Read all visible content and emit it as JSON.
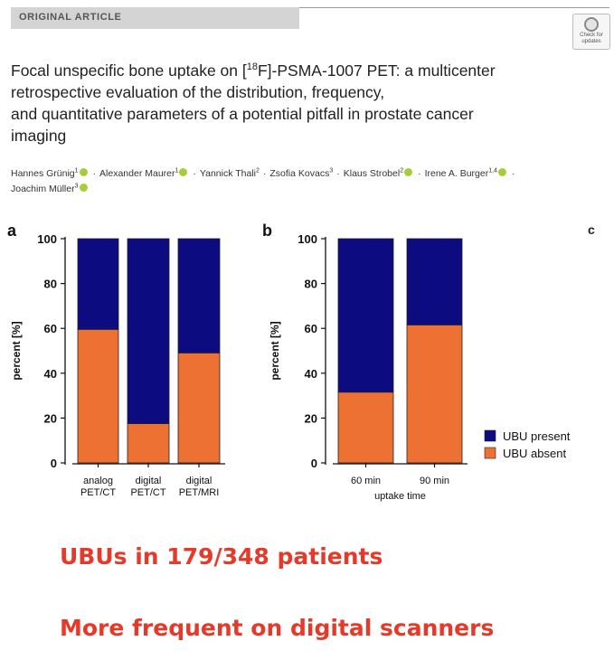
{
  "article": {
    "banner": "ORIGINAL ARTICLE",
    "check_badge": "Check for updates",
    "title_pre": "Focal unspecific bone uptake on [",
    "title_sup": "18",
    "title_post": "F]-PSMA-1007 PET: a multicenter",
    "title_line2": "retrospective evaluation of the distribution, frequency,",
    "title_line3": "and quantitative parameters of a potential pitfall in prostate cancer",
    "title_line4": "imaging",
    "authors": [
      {
        "name": "Hannes Grünig",
        "aff": "1",
        "orcid": true
      },
      {
        "name": "Alexander Maurer",
        "aff": "1",
        "orcid": true
      },
      {
        "name": "Yannick Thali",
        "aff": "2",
        "orcid": false
      },
      {
        "name": "Zsofia Kovacs",
        "aff": "3",
        "orcid": false
      },
      {
        "name": "Klaus Strobel",
        "aff": "2",
        "orcid": true
      },
      {
        "name": "Irene A. Burger",
        "aff": "1,4",
        "orcid": true
      },
      {
        "name": "Joachim Müller",
        "aff": "3",
        "orcid": true
      }
    ],
    "separator": "·",
    "third_panel_letter": "c"
  },
  "colors": {
    "present": "#0c0c80",
    "absent": "#ed7132",
    "highlight": "#e53a2a"
  },
  "chart_data": [
    {
      "panel": "a",
      "type": "bar",
      "stacked": true,
      "categories": [
        [
          "analog",
          "PET/CT"
        ],
        [
          "digital",
          "PET/CT"
        ],
        [
          "digital",
          "PET/MRI"
        ]
      ],
      "series": [
        {
          "name": "UBU absent",
          "values": [
            59.5,
            17.5,
            49
          ]
        },
        {
          "name": "UBU present",
          "values": [
            40.5,
            82.5,
            51
          ]
        }
      ],
      "ylabel": "percent [%]",
      "xlabel": "",
      "ylim": [
        0,
        100
      ],
      "yticks": [
        0,
        20,
        40,
        60,
        80,
        100
      ]
    },
    {
      "panel": "b",
      "type": "bar",
      "stacked": true,
      "categories": [
        [
          "60 min"
        ],
        [
          "90 min"
        ]
      ],
      "series": [
        {
          "name": "UBU absent",
          "values": [
            31.5,
            61.5
          ]
        },
        {
          "name": "UBU present",
          "values": [
            68.5,
            38.5
          ]
        }
      ],
      "ylabel": "percent [%]",
      "xlabel": "uptake time",
      "ylim": [
        0,
        100
      ],
      "yticks": [
        0,
        20,
        40,
        60,
        80,
        100
      ],
      "legend": {
        "position": "bottom-right",
        "entries": [
          "UBU present",
          "UBU absent"
        ]
      }
    }
  ],
  "highlights": {
    "line1": "UBUs in 179/348 patients",
    "line2": "More frequent on digital scanners"
  }
}
